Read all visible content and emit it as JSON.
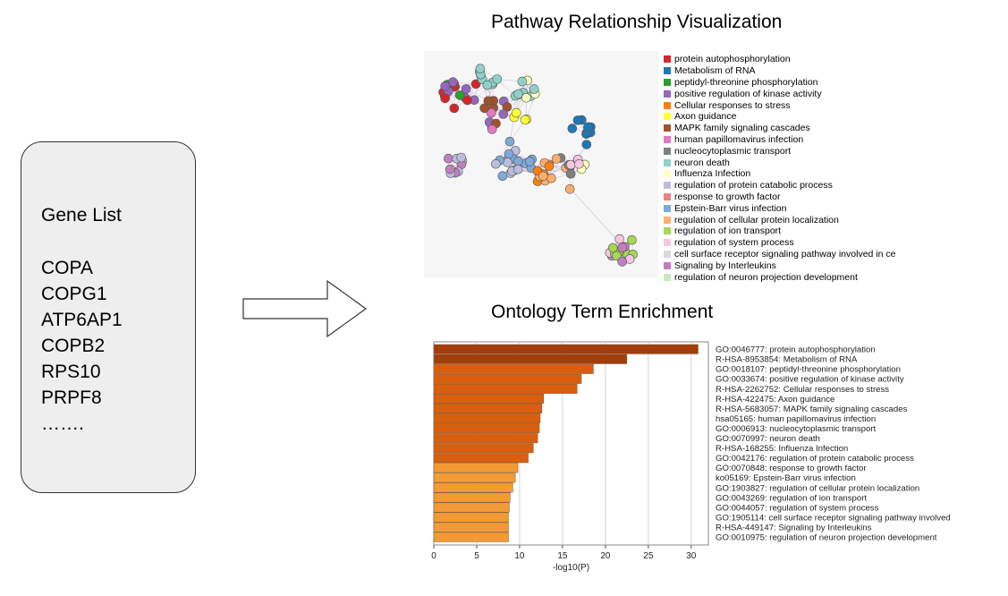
{
  "gene_list": {
    "title": "Gene List",
    "genes": [
      "COPA",
      "COPG1",
      "ATP6AP1",
      "COPB2",
      "RPS10",
      "PRPF8",
      "……."
    ]
  },
  "network": {
    "title": "Pathway Relationship Visualization",
    "legend": [
      {
        "label": "protein autophosphorylation",
        "color": "#d62728"
      },
      {
        "label": "Metabolism of RNA",
        "color": "#1f77b4"
      },
      {
        "label": "peptidyl-threonine phosphorylation",
        "color": "#2ca02c"
      },
      {
        "label": "positive regulation of kinase activity",
        "color": "#9467bd"
      },
      {
        "label": "Cellular responses to stress",
        "color": "#ff7f0e"
      },
      {
        "label": "Axon guidance",
        "color": "#ffff33"
      },
      {
        "label": "MAPK family signaling cascades",
        "color": "#a0522d"
      },
      {
        "label": "human papillomavirus infection",
        "color": "#e377c2"
      },
      {
        "label": "nucleocytoplasmic transport",
        "color": "#7f7f7f"
      },
      {
        "label": "neuron death",
        "color": "#8fd1c8"
      },
      {
        "label": "Influenza Infection",
        "color": "#ffffbf"
      },
      {
        "label": "regulation of protein catabolic process",
        "color": "#bcbddc"
      },
      {
        "label": "response to growth factor",
        "color": "#f08080"
      },
      {
        "label": "Epstein-Barr virus infection",
        "color": "#7fa9d6"
      },
      {
        "label": "regulation of cellular protein localization",
        "color": "#fdae6b"
      },
      {
        "label": "regulation of ion transport",
        "color": "#a6d854"
      },
      {
        "label": "regulation of system process",
        "color": "#f7c6e0"
      },
      {
        "label": "cell surface receptor signaling pathway involved in ce",
        "color": "#d9d9d9"
      },
      {
        "label": "Signaling by Interleukins",
        "color": "#c27fc0"
      },
      {
        "label": "regulation of neuron projection development",
        "color": "#c7e9c0"
      }
    ]
  },
  "chart_data": {
    "type": "bar",
    "title": "Ontology Term Enrichment",
    "xlabel": "-log10(P)",
    "xlim": [
      0,
      32
    ],
    "xticks": [
      0,
      5,
      10,
      15,
      20,
      25,
      30
    ],
    "orientation": "horizontal",
    "categories": [
      "GO:0046777: protein autophosphorylation",
      "R-HSA-8953854: Metabolism of RNA",
      "GO:0018107: peptidyl-threonine phosphorylation",
      "GO:0033674: positive regulation of kinase activity",
      "R-HSA-2262752: Cellular responses to stress",
      "R-HSA-422475: Axon guidance",
      "R-HSA-5683057: MAPK family signaling cascades",
      "hsa05165: human papillomavirus infection",
      "GO:0006913: nucleocytoplasmic transport",
      "GO:0070997: neuron death",
      "R-HSA-168255: Influenza Infection",
      "GO:0042176: regulation of protein catabolic process",
      "GO:0070848: response to growth factor",
      "ko05169: Epstein-Barr virus infection",
      "GO:1903827: regulation of cellular protein localization",
      "GO:0043269: regulation of ion transport",
      "GO:0044057: regulation of system process",
      "GO:1905114: cell surface receptor signaling pathway involved",
      "R-HSA-449147: Signaling by Interleukins",
      "GO:0010975: regulation of neuron projection development"
    ],
    "values": [
      30.8,
      22.5,
      18.6,
      17.2,
      16.7,
      12.8,
      12.6,
      12.4,
      12.3,
      12.1,
      11.6,
      11.0,
      9.8,
      9.5,
      9.2,
      8.9,
      8.8,
      8.7,
      8.7,
      8.7
    ],
    "colors": [
      "#a33d0b",
      "#a33d0b",
      "#d95f0e",
      "#d95f0e",
      "#d95f0e",
      "#d95f0e",
      "#d95f0e",
      "#d95f0e",
      "#d95f0e",
      "#d95f0e",
      "#d95f0e",
      "#d95f0e",
      "#f39a35",
      "#f39a35",
      "#f39a35",
      "#f39a35",
      "#f39a35",
      "#f39a35",
      "#f39a35",
      "#f39a35"
    ]
  }
}
